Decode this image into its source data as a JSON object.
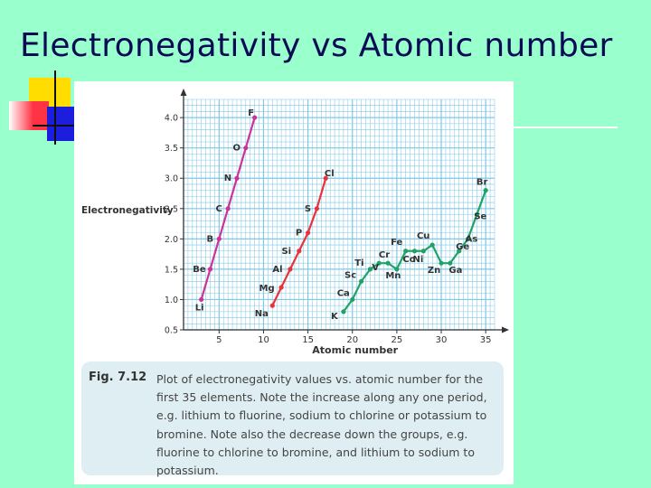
{
  "slide": {
    "title": "Electronegativity vs Atomic number"
  },
  "figure": {
    "label": "Fig. 7.12",
    "caption": "Plot of electronegativity values vs. atomic number for the first 35 elements. Note the increase along any one period, e.g. lithium to fluorine, sodium to chlorine or potassium to bromine. Note also the decrease down the groups, e.g. fluorine to chlorine to bromine, and lithium to sodium to potassium."
  },
  "colors": {
    "period2": "#cc3399",
    "period3": "#e8333a",
    "period4": "#1fa266",
    "grid": "#7fc8e8",
    "slide_bg": "#99ffcc"
  },
  "chart_data": {
    "type": "line",
    "title": "",
    "xlabel": "Atomic number",
    "ylabel": "Electronegativity",
    "xlim": [
      1,
      36
    ],
    "ylim": [
      0.5,
      4.3
    ],
    "xticks": [
      5,
      10,
      15,
      20,
      25,
      30,
      35
    ],
    "yticks": [
      "0.5",
      "1.0",
      "1.5",
      "2.0",
      "2.5",
      "3.0",
      "3.5",
      "4.0"
    ],
    "grid": true,
    "series": [
      {
        "color_key": "period2",
        "points": [
          {
            "x": 3,
            "y": 1.0,
            "label": "Li"
          },
          {
            "x": 4,
            "y": 1.5,
            "label": "Be"
          },
          {
            "x": 5,
            "y": 2.0,
            "label": "B"
          },
          {
            "x": 6,
            "y": 2.5,
            "label": "C"
          },
          {
            "x": 7,
            "y": 3.0,
            "label": "N"
          },
          {
            "x": 8,
            "y": 3.5,
            "label": "O"
          },
          {
            "x": 9,
            "y": 4.0,
            "label": "F"
          }
        ]
      },
      {
        "color_key": "period3",
        "points": [
          {
            "x": 11,
            "y": 0.9,
            "label": "Na"
          },
          {
            "x": 12,
            "y": 1.2,
            "label": "Mg"
          },
          {
            "x": 13,
            "y": 1.5,
            "label": "Al"
          },
          {
            "x": 14,
            "y": 1.8,
            "label": "Si"
          },
          {
            "x": 15,
            "y": 2.1,
            "label": "P"
          },
          {
            "x": 16,
            "y": 2.5,
            "label": "S"
          },
          {
            "x": 17,
            "y": 3.0,
            "label": "Cl"
          }
        ]
      },
      {
        "color_key": "period4",
        "points": [
          {
            "x": 19,
            "y": 0.8,
            "label": "K"
          },
          {
            "x": 20,
            "y": 1.0,
            "label": "Ca"
          },
          {
            "x": 21,
            "y": 1.3,
            "label": "Sc"
          },
          {
            "x": 22,
            "y": 1.5,
            "label": "Ti"
          },
          {
            "x": 23,
            "y": 1.6,
            "label": "V"
          },
          {
            "x": 24,
            "y": 1.6,
            "label": "Cr"
          },
          {
            "x": 25,
            "y": 1.5,
            "label": "Mn"
          },
          {
            "x": 26,
            "y": 1.8,
            "label": "Fe"
          },
          {
            "x": 27,
            "y": 1.8,
            "label": "Co"
          },
          {
            "x": 28,
            "y": 1.8,
            "label": "Ni"
          },
          {
            "x": 29,
            "y": 1.9,
            "label": "Cu"
          },
          {
            "x": 30,
            "y": 1.6,
            "label": "Zn"
          },
          {
            "x": 31,
            "y": 1.6,
            "label": "Ga"
          },
          {
            "x": 32,
            "y": 1.8,
            "label": "Ge"
          },
          {
            "x": 33,
            "y": 2.0,
            "label": "As"
          },
          {
            "x": 34,
            "y": 2.4,
            "label": "Se"
          },
          {
            "x": 35,
            "y": 2.8,
            "label": "Br"
          }
        ]
      }
    ]
  }
}
